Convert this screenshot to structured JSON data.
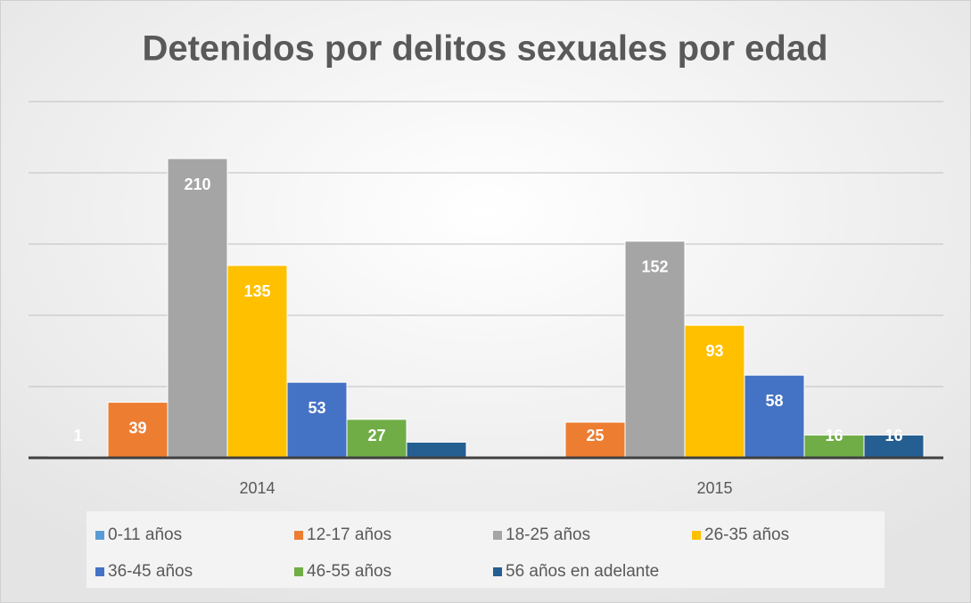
{
  "chart_data": {
    "type": "bar",
    "title": "Detenidos por delitos sexuales por edad",
    "categories": [
      "2014",
      "2015"
    ],
    "series": [
      {
        "name": "0-11 años",
        "color": "#5b9bd5",
        "values": [
          1,
          0
        ],
        "value_labels": [
          "1",
          null
        ]
      },
      {
        "name": "12-17 años",
        "color": "#ed7d31",
        "values": [
          39,
          25
        ]
      },
      {
        "name": "18-25 años",
        "color": "#a5a5a5",
        "values": [
          210,
          152
        ]
      },
      {
        "name": "26-35 años",
        "color": "#ffc000",
        "values": [
          135,
          93
        ]
      },
      {
        "name": "36-45 años",
        "color": "#4472c4",
        "values": [
          53,
          58
        ]
      },
      {
        "name": "46-55 años",
        "color": "#70ad47",
        "values": [
          27,
          16
        ]
      },
      {
        "name": "56 años en adelante",
        "color": "#255e91",
        "values": [
          11,
          16
        ],
        "value_labels": [
          null,
          "16"
        ]
      }
    ],
    "ylim": [
      0,
      250
    ],
    "yticks": [
      0,
      50,
      100,
      150,
      200,
      250
    ],
    "grid": true,
    "legend": "bottom"
  }
}
